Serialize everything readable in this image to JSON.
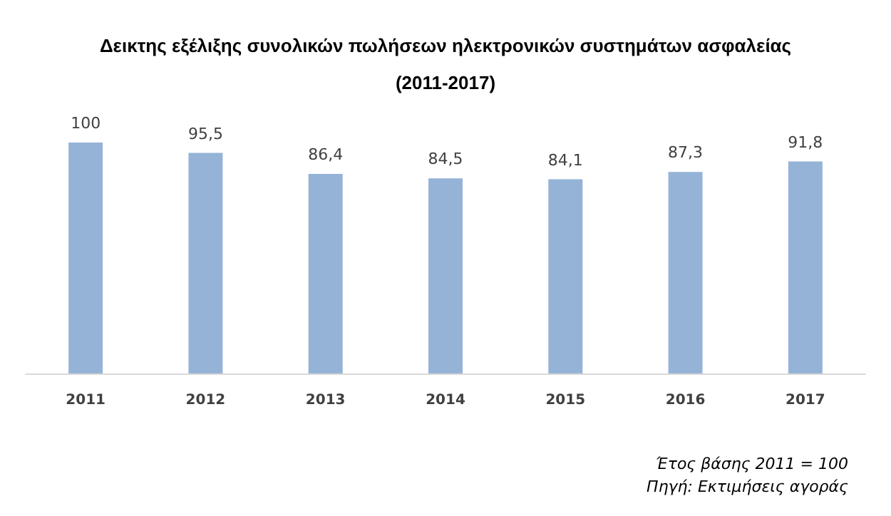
{
  "chart_data": {
    "type": "bar",
    "title": "Δεικτης εξέλιξης συνολικών πωλήσεων ηλεκτρονικών συστημάτων ασφαλείας\n(2011-2017)",
    "categories": [
      "2011",
      "2012",
      "2013",
      "2014",
      "2015",
      "2016",
      "2017"
    ],
    "values": [
      100,
      95.5,
      86.4,
      84.5,
      84.1,
      87.3,
      91.8
    ],
    "value_labels": [
      "100",
      "95,5",
      "86,4",
      "84,5",
      "84,1",
      "87,3",
      "91,8"
    ],
    "color": "#95b3d7",
    "grid": false,
    "annotations": [
      "Έτος βάσης 2011 = 100",
      "Πηγή: Εκτιμήσεις αγοράς"
    ]
  }
}
